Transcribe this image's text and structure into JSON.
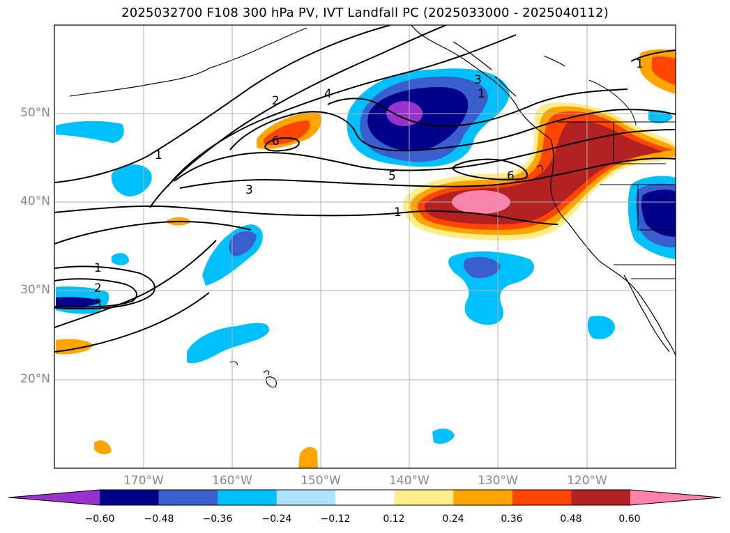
{
  "title": "2025032700 F108 300 hPa PV, IVT Landfall PC (2025033000 - 2025040112)",
  "map": {
    "lat_labels": [
      "50°N",
      "40°N",
      "30°N",
      "20°N"
    ],
    "lon_labels": [
      "170°W",
      "160°W",
      "150°W",
      "140°W",
      "130°W",
      "120°W"
    ],
    "contour_labels": [
      "1",
      "2",
      "3",
      "4",
      "5",
      "6",
      "1",
      "1",
      "2",
      "3",
      "6",
      "3",
      "1",
      "1"
    ]
  },
  "colorbar": {
    "ticks": [
      "−0.60",
      "−0.48",
      "−0.36",
      "−0.24",
      "−0.12",
      "0.12",
      "0.24",
      "0.36",
      "0.48",
      "0.60"
    ],
    "colors": [
      "#9932cc",
      "#00008b",
      "#3a5fcd",
      "#00bfff",
      "#b0e2ff",
      "#ffffff",
      "#ffec8b",
      "#ffa500",
      "#ff4500",
      "#b22222",
      "#ff82ab",
      "#ff82ab"
    ]
  }
}
